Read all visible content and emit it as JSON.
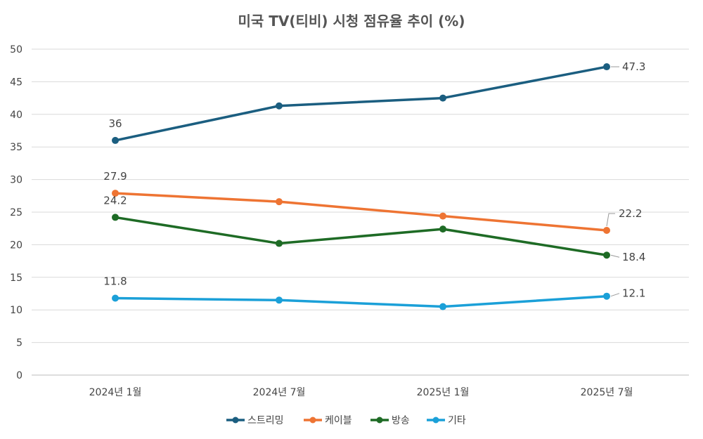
{
  "chart_data": {
    "type": "line",
    "title": "미국 TV(티비) 시청 점유율 추이 (%)",
    "categories": [
      "2024년 1월",
      "2024년 7월",
      "2025년 1월",
      "2025년 7월"
    ],
    "ylim": [
      0,
      50
    ],
    "yticks": [
      0,
      5,
      10,
      15,
      20,
      25,
      30,
      35,
      40,
      45,
      50
    ],
    "grid": true,
    "legend_position": "bottom",
    "series": [
      {
        "name": "스트리밍",
        "color": "#1b5e80",
        "values": [
          36,
          41.3,
          42.5,
          47.3
        ],
        "labels": [
          "36",
          "",
          "",
          "47.3"
        ]
      },
      {
        "name": "케이블",
        "color": "#ee7433",
        "values": [
          27.9,
          26.6,
          24.4,
          22.2
        ],
        "labels": [
          "27.9",
          "",
          "",
          "22.2"
        ]
      },
      {
        "name": "방송",
        "color": "#1e6b25",
        "values": [
          24.2,
          20.2,
          22.4,
          18.4
        ],
        "labels": [
          "24.2",
          "",
          "",
          "18.4"
        ]
      },
      {
        "name": "기타",
        "color": "#1ba0d8",
        "values": [
          11.8,
          11.5,
          10.5,
          12.1
        ],
        "labels": [
          "11.8",
          "",
          "",
          "12.1"
        ]
      }
    ]
  }
}
